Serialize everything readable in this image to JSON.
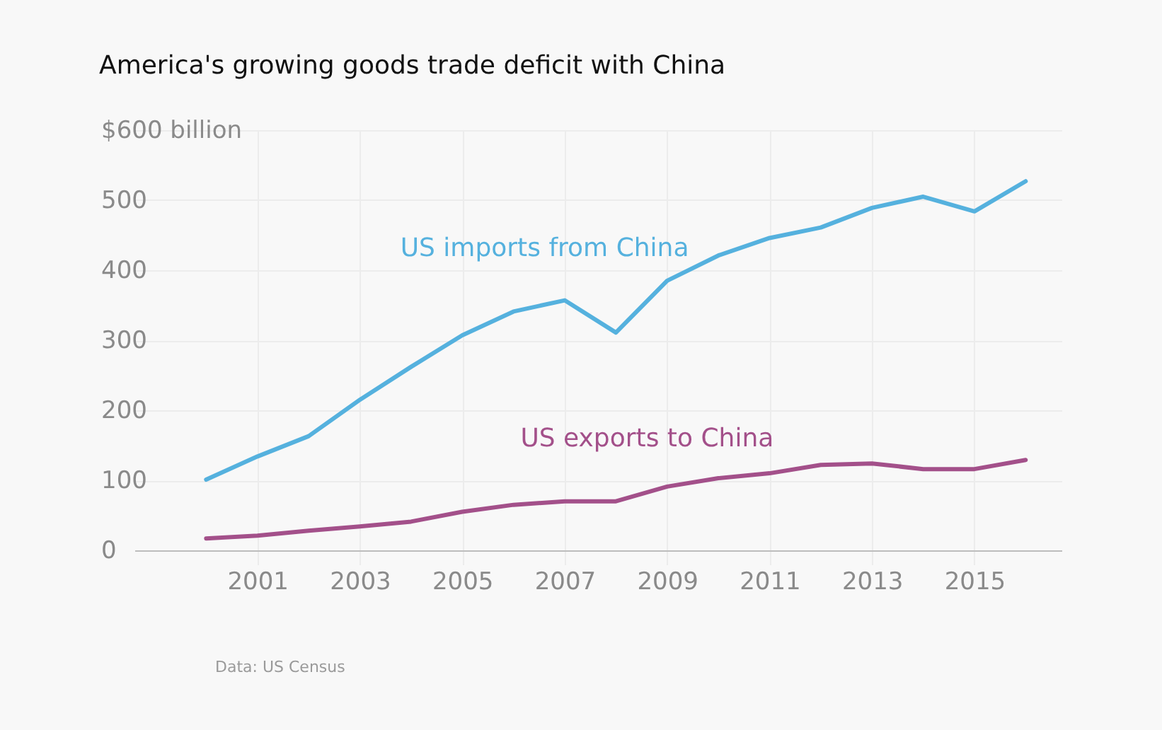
{
  "chart_data": {
    "type": "line",
    "title": "America's growing goods trade deficit with China",
    "x": [
      2000,
      2001,
      2002,
      2003,
      2004,
      2005,
      2006,
      2007,
      2008,
      2009,
      2010,
      2011,
      2012,
      2013,
      2014,
      2015,
      2016
    ],
    "series": [
      {
        "name": "US imports from China",
        "color": "#55b1de",
        "values": [
          101,
          134,
          163,
          215,
          262,
          307,
          341,
          357,
          311,
          385,
          421,
          446,
          461,
          489,
          505,
          484,
          527
        ]
      },
      {
        "name": "US exports to China",
        "color": "#a3508a",
        "values": [
          17,
          21,
          28,
          34,
          41,
          55,
          65,
          70,
          70,
          91,
          103,
          110,
          122,
          124,
          116,
          116,
          129
        ]
      }
    ],
    "xlim": [
      1998.6,
      2016.7
    ],
    "xticks": [
      2001,
      2003,
      2005,
      2007,
      2009,
      2011,
      2013,
      2015
    ],
    "ylim": [
      0,
      600
    ],
    "yticks": [
      0,
      100,
      200,
      300,
      400,
      500,
      {
        "value": 600,
        "label": "$600 billion"
      }
    ],
    "grid": true,
    "legend": false,
    "marker": "none",
    "line_style": "solid",
    "annotations": [
      "Data: US Census"
    ]
  }
}
